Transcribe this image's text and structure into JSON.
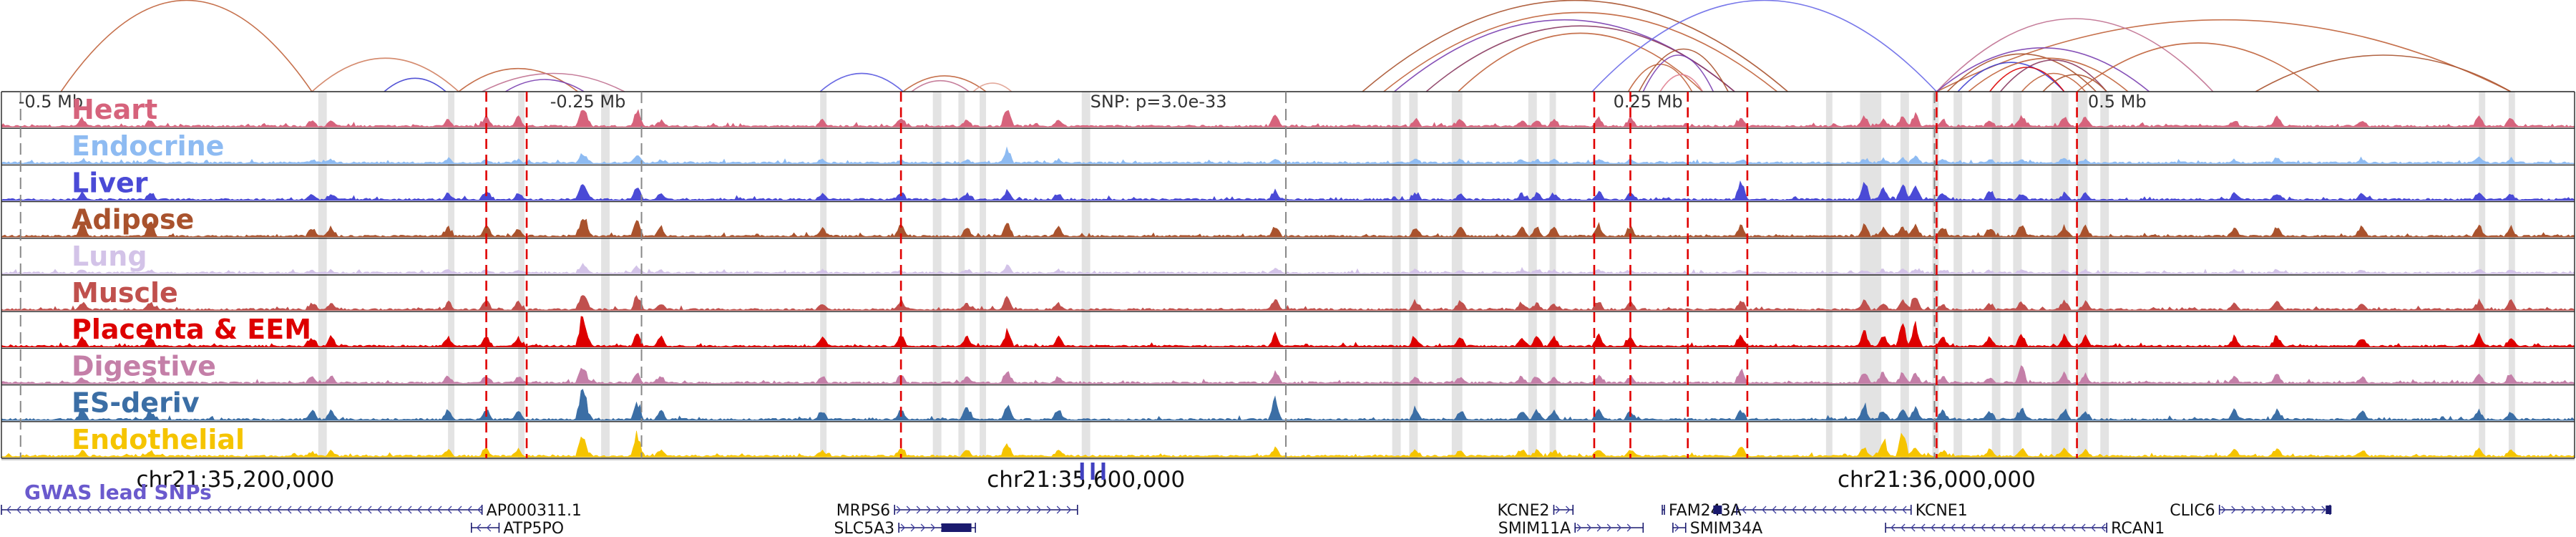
{
  "locus": {
    "chrom": "chr21",
    "start": 35090000,
    "end": 36300000,
    "center_label": "SNP: p=3.0e-33",
    "relative_labels": [
      "-0.5 Mb",
      "-0.25 Mb",
      "0.25 Mb",
      "0.5 Mb"
    ],
    "relative_positions": [
      35100000,
      35350000,
      35850000,
      36100000
    ]
  },
  "tracks": [
    {
      "label": "Heart",
      "color": "#d6637c"
    },
    {
      "label": "Endocrine",
      "color": "#8ebbf2"
    },
    {
      "label": "Liver",
      "color": "#4a4ad6"
    },
    {
      "label": "Adipose",
      "color": "#a9522d"
    },
    {
      "label": "Lung",
      "color": "#d3c3e8"
    },
    {
      "label": "Muscle",
      "color": "#c0504d"
    },
    {
      "label": "Placenta & EEM",
      "color": "#dd0000"
    },
    {
      "label": "Digestive",
      "color": "#c47fa8"
    },
    {
      "label": "ES-deriv",
      "color": "#3b6ea5"
    },
    {
      "label": "Endothelial",
      "color": "#f5c400"
    }
  ],
  "coordinate_ticks": [
    {
      "label": "chr21:35,200,000",
      "pos": 35200000
    },
    {
      "label": "chr21:35,600,000",
      "pos": 35600000
    },
    {
      "label": "chr21:36,000,000",
      "pos": 36000000
    }
  ],
  "gwas_label": "GWAS lead SNPs",
  "gwas_snps": [
    35598000,
    35603000,
    35608000
  ],
  "genes": [
    {
      "name": "AP000311.1",
      "start": 35090000,
      "end": 35316000,
      "strand": "-",
      "row": 1
    },
    {
      "name": "ATP5PO",
      "start": 35311000,
      "end": 35324000,
      "strand": "-",
      "row": 2
    },
    {
      "name": "MRPS6",
      "start": 35510000,
      "end": 35596000,
      "strand": "+",
      "row": 1
    },
    {
      "name": "SLC5A3",
      "start": 35512000,
      "end": 35548000,
      "strand": "+",
      "row": 2
    },
    {
      "name": "KCNE2",
      "start": 35820000,
      "end": 35829000,
      "strand": "+",
      "row": 1
    },
    {
      "name": "SMIM11A",
      "start": 35830000,
      "end": 35862000,
      "strand": "+",
      "row": 2
    },
    {
      "name": "FAM243A",
      "start": 35871000,
      "end": 35872000,
      "strand": "+",
      "row": 1
    },
    {
      "name": "SMIM34A",
      "start": 35876000,
      "end": 35882000,
      "strand": "+",
      "row": 2
    },
    {
      "name": "KCNE1",
      "start": 35906000,
      "end": 35988000,
      "strand": "-",
      "row": 1
    },
    {
      "name": "RCAN1",
      "start": 35976000,
      "end": 36080000,
      "strand": "-",
      "row": 2
    },
    {
      "name": "CLIC6",
      "start": 36133000,
      "end": 36185000,
      "strand": "+",
      "row": 1
    }
  ],
  "red_dashed_positions": [
    35318000,
    35337000,
    35513000,
    35839000,
    35856000,
    35883000,
    35911000,
    36000000,
    36066000
  ],
  "gray_dashed_positions": [
    35099000,
    35391000,
    35694000,
    35999000
  ],
  "gray_bands": [
    [
      35239000,
      35243000
    ],
    [
      35300000,
      35303000
    ],
    [
      35333000,
      35336000
    ],
    [
      35372000,
      35376000
    ],
    [
      35475000,
      35478000
    ],
    [
      35528000,
      35532000
    ],
    [
      35540000,
      35543000
    ],
    [
      35550000,
      35553000
    ],
    [
      35598000,
      35602000
    ],
    [
      35744000,
      35748000
    ],
    [
      35752000,
      35756000
    ],
    [
      35772000,
      35777000
    ],
    [
      35808000,
      35812000
    ],
    [
      35818000,
      35821000
    ],
    [
      35948000,
      35951000
    ],
    [
      35964000,
      35974000
    ],
    [
      35983000,
      35987000
    ],
    [
      35998000,
      36001000
    ],
    [
      36008000,
      36012000
    ],
    [
      36026000,
      36030000
    ],
    [
      36036000,
      36040000
    ],
    [
      36054000,
      36062000
    ],
    [
      36066000,
      36071000
    ],
    [
      36077000,
      36081000
    ],
    [
      36255000,
      36258000
    ],
    [
      36269000,
      36272000
    ]
  ],
  "loops": [
    {
      "start": 35118000,
      "end": 35236000,
      "color": "#c0623a",
      "height": 150
    },
    {
      "start": 35236000,
      "end": 35305000,
      "color": "#d08060",
      "height": 55
    },
    {
      "start": 35270000,
      "end": 35299000,
      "color": "#3f3fd0",
      "height": 22
    },
    {
      "start": 35305000,
      "end": 35361000,
      "color": "#c0623a",
      "height": 38
    },
    {
      "start": 35316000,
      "end": 35383000,
      "color": "#c07090",
      "height": 30
    },
    {
      "start": 35327000,
      "end": 35364000,
      "color": "#7a3fb0",
      "height": 20
    },
    {
      "start": 35475000,
      "end": 35514000,
      "color": "#5a5ae0",
      "height": 30
    },
    {
      "start": 35514000,
      "end": 35553000,
      "color": "#c0623a",
      "height": 26
    },
    {
      "start": 35518000,
      "end": 35545000,
      "color": "#c07090",
      "height": 18
    },
    {
      "start": 35547000,
      "end": 35565000,
      "color": "#e0a090",
      "height": 14
    },
    {
      "start": 35730000,
      "end": 35930000,
      "color": "#a9522d",
      "height": 150
    },
    {
      "start": 35740000,
      "end": 35925000,
      "color": "#c0623a",
      "height": 130
    },
    {
      "start": 35745000,
      "end": 35905000,
      "color": "#7a3fb0",
      "height": 118
    },
    {
      "start": 35760000,
      "end": 35905000,
      "color": "#8a3a60",
      "height": 108
    },
    {
      "start": 35775000,
      "end": 35890000,
      "color": "#c0623a",
      "height": 96
    },
    {
      "start": 35838000,
      "end": 36000000,
      "color": "#6a6ae8",
      "height": 150
    },
    {
      "start": 35855000,
      "end": 35885000,
      "color": "#c0623a",
      "height": 45
    },
    {
      "start": 35860000,
      "end": 35902000,
      "color": "#a9522d",
      "height": 70
    },
    {
      "start": 35862000,
      "end": 35895000,
      "color": "#7a3fb0",
      "height": 60
    },
    {
      "start": 35870000,
      "end": 35890000,
      "color": "#e08090",
      "height": 28
    },
    {
      "start": 36000000,
      "end": 36270000,
      "color": "#c0623a",
      "height": 118
    },
    {
      "start": 36000000,
      "end": 36130000,
      "color": "#c07090",
      "height": 120
    },
    {
      "start": 36000000,
      "end": 36100000,
      "color": "#7a3fb0",
      "height": 72
    },
    {
      "start": 36005000,
      "end": 36075000,
      "color": "#a9522d",
      "height": 62
    },
    {
      "start": 36010000,
      "end": 36060000,
      "color": "#3f3fd0",
      "height": 48
    },
    {
      "start": 36015000,
      "end": 36090000,
      "color": "#c0623a",
      "height": 55
    },
    {
      "start": 36025000,
      "end": 36060000,
      "color": "#dd0000",
      "height": 40
    },
    {
      "start": 36030000,
      "end": 36080000,
      "color": "#8a3a60",
      "height": 52
    },
    {
      "start": 36040000,
      "end": 36070000,
      "color": "#c0623a",
      "height": 30
    },
    {
      "start": 36050000,
      "end": 36080000,
      "color": "#a9522d",
      "height": 28
    },
    {
      "start": 36066000,
      "end": 36180000,
      "color": "#c0623a",
      "height": 80
    },
    {
      "start": 36150000,
      "end": 36270000,
      "color": "#a9522d",
      "height": 60
    }
  ]
}
